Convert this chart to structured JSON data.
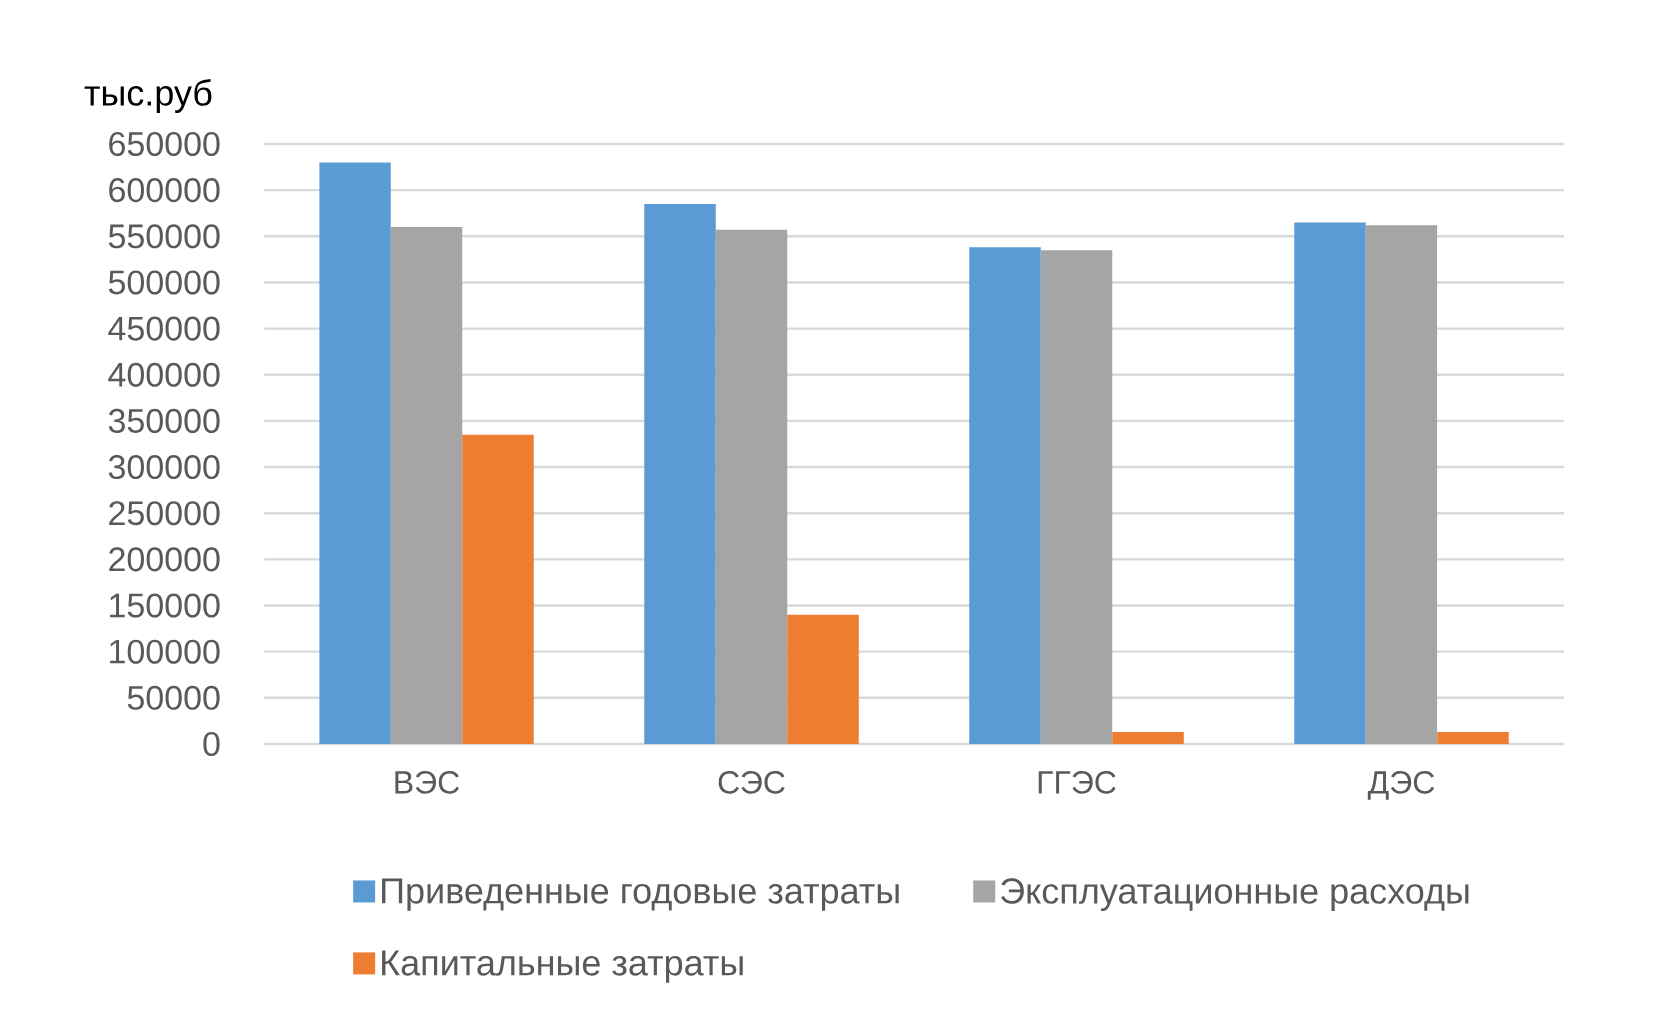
{
  "chart_data": {
    "type": "bar",
    "ylabel": "тыс.руб",
    "categories": [
      "ВЭС",
      "СЭС",
      "ГГЭС",
      "ДЭС"
    ],
    "series": [
      {
        "name": "Приведенные годовые затраты",
        "color": "#5b9bd5",
        "values": [
          630000,
          585000,
          538000,
          565000
        ]
      },
      {
        "name": "Эксплуатационные расходы",
        "color": "#a5a5a5",
        "values": [
          560000,
          557000,
          535000,
          562000
        ]
      },
      {
        "name": "Капитальные затраты",
        "color": "#ed7d31",
        "values": [
          335000,
          140000,
          13000,
          13000
        ]
      }
    ],
    "ylim": [
      0,
      650000
    ],
    "yticks": [
      0,
      50000,
      100000,
      150000,
      200000,
      250000,
      300000,
      350000,
      400000,
      450000,
      500000,
      550000,
      600000,
      650000
    ],
    "grid": "y",
    "legend": "bottom"
  }
}
